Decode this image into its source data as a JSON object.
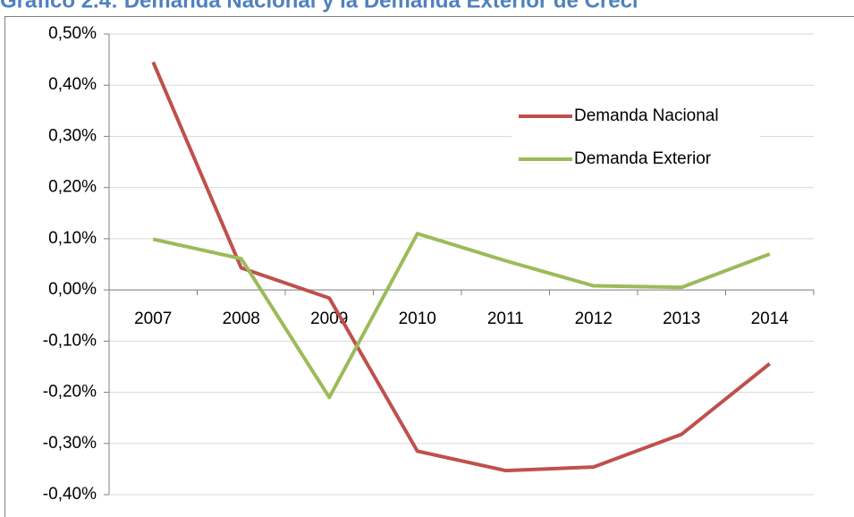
{
  "chart_data": {
    "type": "line",
    "title": "Gráfico 2.4: Demanda Nacional y la Demanda Exterior de Creci",
    "categories": [
      "2007",
      "2008",
      "2009",
      "2010",
      "2011",
      "2012",
      "2013",
      "2014"
    ],
    "series": [
      {
        "name": "Demanda Nacional",
        "color": "#c0504d",
        "values": [
          0.445,
          0.043,
          -0.016,
          -0.315,
          -0.353,
          -0.346,
          -0.282,
          -0.144
        ]
      },
      {
        "name": "Demanda Exterior",
        "color": "#9bbb59",
        "values": [
          0.099,
          0.061,
          -0.21,
          0.11,
          0.057,
          0.008,
          0.005,
          0.07
        ]
      }
    ],
    "ylim": [
      -0.4,
      0.5
    ],
    "yticks": [
      {
        "value": -0.4,
        "label": "-0,40%"
      },
      {
        "value": -0.3,
        "label": "-0,30%"
      },
      {
        "value": -0.2,
        "label": "-0,20%"
      },
      {
        "value": -0.1,
        "label": "-0,10%"
      },
      {
        "value": 0,
        "label": "0,00%"
      },
      {
        "value": 0.1,
        "label": "0,10%"
      },
      {
        "value": 0.2,
        "label": "0,20%"
      },
      {
        "value": 0.3,
        "label": "0,30%"
      },
      {
        "value": 0.4,
        "label": "0,40%"
      },
      {
        "value": 0.5,
        "label": "0,50%"
      }
    ],
    "grid": true,
    "legend": "upper right"
  }
}
